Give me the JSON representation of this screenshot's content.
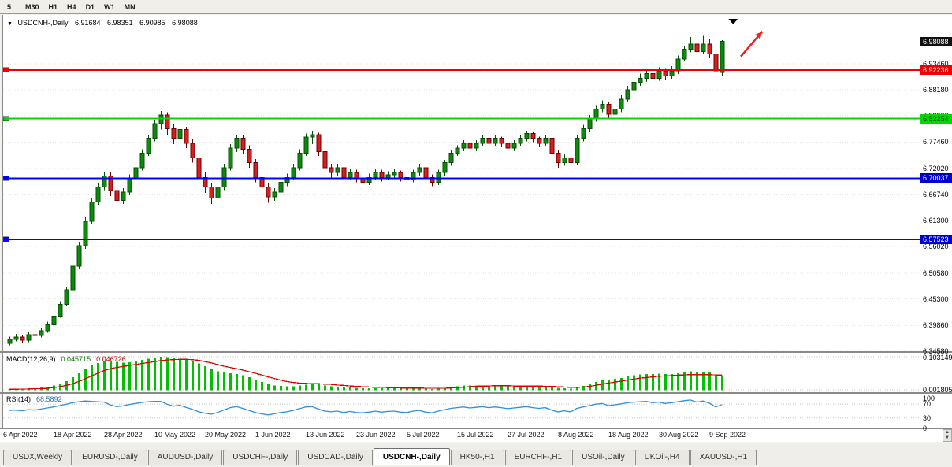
{
  "toolbar": {
    "periods": [
      "5",
      "M30",
      "H1",
      "H4",
      "D1",
      "W1",
      "MN"
    ]
  },
  "scroll": {
    "up": "▲",
    "down": "▼"
  },
  "chart": {
    "symbol_line": {
      "expander": "▼",
      "symbol": "USDCNH-,Daily",
      "open": "6.91684",
      "high": "6.98351",
      "low": "6.90985",
      "close": "6.98088"
    },
    "price_axis": {
      "ticks": [
        "6.93460",
        "6.88180",
        "6.82900",
        "6.77460",
        "6.72020",
        "6.66740",
        "6.61300",
        "6.56020",
        "6.50580",
        "6.45300",
        "6.39860",
        "6.34580"
      ],
      "badges": [
        {
          "text": "6.98088",
          "value": 6.98088,
          "bg": "#111111",
          "fg": "#ffffff"
        },
        {
          "text": "6.92236",
          "value": 6.92236,
          "bg": "#f00000",
          "fg": "#ffffff"
        },
        {
          "text": "6.82254",
          "value": 6.82254,
          "bg": "#00d800",
          "fg": "#013301"
        },
        {
          "text": "6.70037",
          "value": 6.70037,
          "bg": "#0000cc",
          "fg": "#ffffff"
        },
        {
          "text": "6.57523",
          "value": 6.57523,
          "bg": "#0000cc",
          "fg": "#ffffff"
        }
      ]
    },
    "hlines": [
      {
        "price": 6.92236,
        "color": "#f00000",
        "width": 2
      },
      {
        "price": 6.82254,
        "color": "#00d800",
        "width": 2
      },
      {
        "price": 6.70037,
        "color": "#0000ff",
        "width": 2
      },
      {
        "price": 6.57523,
        "color": "#0000ff",
        "width": 2
      }
    ],
    "annotations": [
      {
        "type": "triangle-down",
        "index": 114.8,
        "price": 7.027,
        "color": "#000000"
      },
      {
        "type": "arrow-up-right",
        "from_index": 116,
        "from_price": 6.95,
        "to_index": 119.4,
        "to_price": 7.001,
        "color": "#f22020"
      }
    ]
  },
  "chart_data": {
    "type": "candlestick",
    "symbol": "USDCNH-,Daily",
    "price_range": [
      6.3458,
      7.035
    ],
    "colors": {
      "up": "#0c8a0c",
      "up_border": "#054d05",
      "down": "#d42020",
      "down_border": "#6e0000"
    },
    "x_labels": [
      {
        "i": 0,
        "text": "6 Apr 2022"
      },
      {
        "i": 8,
        "text": "18 Apr 2022"
      },
      {
        "i": 16,
        "text": "28 Apr 2022"
      },
      {
        "i": 24,
        "text": "10 May 2022"
      },
      {
        "i": 32,
        "text": "20 May 2022"
      },
      {
        "i": 40,
        "text": "1 Jun 2022"
      },
      {
        "i": 48,
        "text": "13 Jun 2022"
      },
      {
        "i": 56,
        "text": "23 Jun 2022"
      },
      {
        "i": 64,
        "text": "5 Jul 2022"
      },
      {
        "i": 72,
        "text": "15 Jul 2022"
      },
      {
        "i": 80,
        "text": "27 Jul 2022"
      },
      {
        "i": 88,
        "text": "8 Aug 2022"
      },
      {
        "i": 96,
        "text": "18 Aug 2022"
      },
      {
        "i": 104,
        "text": "30 Aug 2022"
      },
      {
        "i": 112,
        "text": "9 Sep 2022"
      }
    ],
    "ohlc": [
      [
        6.362,
        6.376,
        6.358,
        6.37
      ],
      [
        6.37,
        6.381,
        6.366,
        6.375
      ],
      [
        6.375,
        6.379,
        6.362,
        6.368
      ],
      [
        6.368,
        6.386,
        6.364,
        6.38
      ],
      [
        6.38,
        6.385,
        6.372,
        6.378
      ],
      [
        6.378,
        6.393,
        6.374,
        6.388
      ],
      [
        6.388,
        6.406,
        6.384,
        6.4
      ],
      [
        6.4,
        6.424,
        6.396,
        6.418
      ],
      [
        6.418,
        6.448,
        6.414,
        6.442
      ],
      [
        6.442,
        6.478,
        6.438,
        6.472
      ],
      [
        6.472,
        6.528,
        6.468,
        6.52
      ],
      [
        6.52,
        6.57,
        6.514,
        6.562
      ],
      [
        6.562,
        6.62,
        6.556,
        6.612
      ],
      [
        6.612,
        6.66,
        6.606,
        6.652
      ],
      [
        6.652,
        6.69,
        6.646,
        6.682
      ],
      [
        6.682,
        6.714,
        6.676,
        6.705
      ],
      [
        6.705,
        6.712,
        6.664,
        6.675
      ],
      [
        6.675,
        6.684,
        6.64,
        6.655
      ],
      [
        6.655,
        6.68,
        6.648,
        6.672
      ],
      [
        6.672,
        6.708,
        6.666,
        6.7
      ],
      [
        6.7,
        6.73,
        6.694,
        6.722
      ],
      [
        6.722,
        6.76,
        6.716,
        6.752
      ],
      [
        6.752,
        6.79,
        6.746,
        6.782
      ],
      [
        6.782,
        6.82,
        6.776,
        6.812
      ],
      [
        6.812,
        6.838,
        6.8,
        6.83
      ],
      [
        6.83,
        6.836,
        6.79,
        6.802
      ],
      [
        6.802,
        6.812,
        6.77,
        6.782
      ],
      [
        6.782,
        6.808,
        6.776,
        6.8
      ],
      [
        6.8,
        6.806,
        6.762,
        6.772
      ],
      [
        6.772,
        6.78,
        6.732,
        6.742
      ],
      [
        6.742,
        6.75,
        6.692,
        6.702
      ],
      [
        6.702,
        6.712,
        6.67,
        6.682
      ],
      [
        6.682,
        6.69,
        6.648,
        6.66
      ],
      [
        6.66,
        6.69,
        6.654,
        6.682
      ],
      [
        6.682,
        6.73,
        6.676,
        6.722
      ],
      [
        6.722,
        6.77,
        6.716,
        6.762
      ],
      [
        6.762,
        6.79,
        6.754,
        6.782
      ],
      [
        6.782,
        6.788,
        6.75,
        6.76
      ],
      [
        6.76,
        6.768,
        6.722,
        6.732
      ],
      [
        6.732,
        6.74,
        6.692,
        6.702
      ],
      [
        6.702,
        6.71,
        6.672,
        6.682
      ],
      [
        6.682,
        6.69,
        6.65,
        6.662
      ],
      [
        6.662,
        6.68,
        6.654,
        6.672
      ],
      [
        6.672,
        6.7,
        6.664,
        6.692
      ],
      [
        6.692,
        6.71,
        6.684,
        6.702
      ],
      [
        6.702,
        6.73,
        6.696,
        6.722
      ],
      [
        6.722,
        6.76,
        6.716,
        6.752
      ],
      [
        6.752,
        6.792,
        6.746,
        6.785
      ],
      [
        6.785,
        6.798,
        6.77,
        6.79
      ],
      [
        6.79,
        6.794,
        6.746,
        6.755
      ],
      [
        6.755,
        6.762,
        6.712,
        6.722
      ],
      [
        6.722,
        6.73,
        6.7,
        6.712
      ],
      [
        6.712,
        6.73,
        6.704,
        6.722
      ],
      [
        6.722,
        6.728,
        6.694,
        6.702
      ],
      [
        6.702,
        6.72,
        6.696,
        6.712
      ],
      [
        6.712,
        6.718,
        6.692,
        6.7
      ],
      [
        6.7,
        6.708,
        6.684,
        6.692
      ],
      [
        6.692,
        6.71,
        6.686,
        6.702
      ],
      [
        6.702,
        6.72,
        6.696,
        6.712
      ],
      [
        6.712,
        6.718,
        6.694,
        6.702
      ],
      [
        6.702,
        6.715,
        6.696,
        6.707
      ],
      [
        6.707,
        6.72,
        6.7,
        6.712
      ],
      [
        6.712,
        6.716,
        6.694,
        6.702
      ],
      [
        6.702,
        6.71,
        6.688,
        6.697
      ],
      [
        6.697,
        6.718,
        6.692,
        6.712
      ],
      [
        6.712,
        6.73,
        6.706,
        6.722
      ],
      [
        6.722,
        6.726,
        6.694,
        6.702
      ],
      [
        6.702,
        6.708,
        6.684,
        6.692
      ],
      [
        6.692,
        6.718,
        6.686,
        6.712
      ],
      [
        6.712,
        6.738,
        6.706,
        6.732
      ],
      [
        6.732,
        6.758,
        6.726,
        6.752
      ],
      [
        6.752,
        6.768,
        6.746,
        6.762
      ],
      [
        6.762,
        6.778,
        6.756,
        6.772
      ],
      [
        6.772,
        6.776,
        6.754,
        6.762
      ],
      [
        6.762,
        6.778,
        6.756,
        6.772
      ],
      [
        6.772,
        6.788,
        6.766,
        6.782
      ],
      [
        6.782,
        6.786,
        6.764,
        6.772
      ],
      [
        6.772,
        6.788,
        6.766,
        6.782
      ],
      [
        6.782,
        6.786,
        6.764,
        6.772
      ],
      [
        6.772,
        6.776,
        6.754,
        6.762
      ],
      [
        6.762,
        6.778,
        6.756,
        6.772
      ],
      [
        6.772,
        6.788,
        6.766,
        6.782
      ],
      [
        6.782,
        6.798,
        6.776,
        6.792
      ],
      [
        6.792,
        6.796,
        6.774,
        6.782
      ],
      [
        6.782,
        6.786,
        6.764,
        6.772
      ],
      [
        6.772,
        6.788,
        6.766,
        6.782
      ],
      [
        6.782,
        6.786,
        6.744,
        6.752
      ],
      [
        6.752,
        6.758,
        6.722,
        6.732
      ],
      [
        6.732,
        6.75,
        6.726,
        6.742
      ],
      [
        6.742,
        6.746,
        6.722,
        6.732
      ],
      [
        6.732,
        6.788,
        6.728,
        6.782
      ],
      [
        6.782,
        6.81,
        6.776,
        6.802
      ],
      [
        6.802,
        6.83,
        6.796,
        6.822
      ],
      [
        6.822,
        6.85,
        6.816,
        6.842
      ],
      [
        6.842,
        6.86,
        6.836,
        6.852
      ],
      [
        6.852,
        6.856,
        6.824,
        6.832
      ],
      [
        6.832,
        6.85,
        6.826,
        6.842
      ],
      [
        6.842,
        6.87,
        6.836,
        6.862
      ],
      [
        6.862,
        6.89,
        6.856,
        6.882
      ],
      [
        6.882,
        6.905,
        6.876,
        6.897
      ],
      [
        6.897,
        6.915,
        6.89,
        6.905
      ],
      [
        6.905,
        6.925,
        6.898,
        6.915
      ],
      [
        6.915,
        6.92,
        6.896,
        6.905
      ],
      [
        6.905,
        6.928,
        6.9,
        6.92
      ],
      [
        6.92,
        6.926,
        6.902,
        6.91
      ],
      [
        6.91,
        6.93,
        6.904,
        6.92
      ],
      [
        6.92,
        6.952,
        6.914,
        6.945
      ],
      [
        6.945,
        6.972,
        6.94,
        6.965
      ],
      [
        6.965,
        6.99,
        6.958,
        6.975
      ],
      [
        6.975,
        6.982,
        6.95,
        6.96
      ],
      [
        6.96,
        6.992,
        6.954,
        6.975
      ],
      [
        6.975,
        6.985,
        6.946,
        6.955
      ],
      [
        6.955,
        6.962,
        6.908,
        6.92
      ],
      [
        6.91684,
        6.98351,
        6.90985,
        6.98088
      ]
    ],
    "macd": {
      "name": "MACD(12,26,9)",
      "value1": "0.045715",
      "value2": "0.046726",
      "axis_labels": [
        "0.103149",
        "0.001805"
      ],
      "axis_values": [
        0.103149,
        0.001805
      ],
      "hist_color": "#00c000",
      "signal_color": "#e00000",
      "hist": [
        0.004,
        0.005,
        0.004,
        0.006,
        0.006,
        0.008,
        0.01,
        0.014,
        0.02,
        0.028,
        0.04,
        0.052,
        0.065,
        0.076,
        0.084,
        0.09,
        0.09,
        0.087,
        0.085,
        0.086,
        0.089,
        0.093,
        0.097,
        0.1,
        0.103,
        0.102,
        0.099,
        0.097,
        0.094,
        0.089,
        0.082,
        0.074,
        0.065,
        0.058,
        0.054,
        0.052,
        0.05,
        0.046,
        0.04,
        0.033,
        0.026,
        0.019,
        0.015,
        0.013,
        0.012,
        0.012,
        0.014,
        0.017,
        0.019,
        0.018,
        0.015,
        0.012,
        0.011,
        0.009,
        0.008,
        0.007,
        0.006,
        0.006,
        0.006,
        0.006,
        0.006,
        0.006,
        0.005,
        0.005,
        0.005,
        0.006,
        0.005,
        0.004,
        0.005,
        0.007,
        0.01,
        0.012,
        0.014,
        0.014,
        0.014,
        0.015,
        0.015,
        0.015,
        0.014,
        0.013,
        0.013,
        0.013,
        0.014,
        0.013,
        0.012,
        0.012,
        0.01,
        0.007,
        0.006,
        0.005,
        0.008,
        0.013,
        0.019,
        0.026,
        0.031,
        0.033,
        0.035,
        0.038,
        0.042,
        0.046,
        0.048,
        0.05,
        0.05,
        0.051,
        0.05,
        0.05,
        0.052,
        0.055,
        0.058,
        0.057,
        0.057,
        0.054,
        0.048,
        0.0457
      ],
      "signal": [
        0.003,
        0.003,
        0.004,
        0.004,
        0.005,
        0.005,
        0.006,
        0.008,
        0.011,
        0.015,
        0.02,
        0.027,
        0.035,
        0.044,
        0.052,
        0.06,
        0.066,
        0.07,
        0.073,
        0.076,
        0.079,
        0.082,
        0.085,
        0.088,
        0.091,
        0.093,
        0.094,
        0.095,
        0.095,
        0.094,
        0.092,
        0.088,
        0.084,
        0.079,
        0.074,
        0.07,
        0.066,
        0.062,
        0.057,
        0.052,
        0.047,
        0.041,
        0.036,
        0.031,
        0.027,
        0.024,
        0.022,
        0.021,
        0.02,
        0.02,
        0.019,
        0.018,
        0.016,
        0.015,
        0.013,
        0.012,
        0.011,
        0.01,
        0.009,
        0.009,
        0.008,
        0.008,
        0.007,
        0.007,
        0.007,
        0.007,
        0.006,
        0.006,
        0.006,
        0.006,
        0.007,
        0.008,
        0.009,
        0.011,
        0.012,
        0.013,
        0.013,
        0.014,
        0.014,
        0.014,
        0.013,
        0.013,
        0.013,
        0.013,
        0.013,
        0.012,
        0.012,
        0.011,
        0.01,
        0.009,
        0.009,
        0.01,
        0.012,
        0.015,
        0.019,
        0.022,
        0.025,
        0.028,
        0.031,
        0.034,
        0.037,
        0.039,
        0.041,
        0.043,
        0.044,
        0.045,
        0.046,
        0.047,
        0.048,
        0.048,
        0.048,
        0.048,
        0.047,
        0.0467
      ]
    },
    "rsi": {
      "name": "RSI(14)",
      "value": "68.5892",
      "color": "#2f8fde",
      "axis_labels": [
        "100",
        "70",
        "30",
        "0"
      ],
      "axis_values": [
        100,
        70,
        30,
        0
      ],
      "levels": [
        70,
        30
      ],
      "series": [
        52,
        53,
        51,
        54,
        53,
        56,
        59,
        62,
        66,
        70,
        74,
        77,
        79,
        78,
        77,
        76,
        68,
        63,
        65,
        69,
        72,
        75,
        77,
        78,
        78,
        70,
        64,
        67,
        61,
        55,
        48,
        44,
        41,
        46,
        53,
        60,
        63,
        58,
        52,
        46,
        42,
        39,
        42,
        46,
        48,
        52,
        57,
        62,
        63,
        56,
        50,
        48,
        50,
        46,
        49,
        46,
        45,
        47,
        50,
        47,
        49,
        50,
        47,
        46,
        50,
        52,
        47,
        45,
        50,
        54,
        58,
        60,
        62,
        59,
        61,
        63,
        60,
        62,
        60,
        57,
        59,
        61,
        63,
        60,
        58,
        60,
        53,
        48,
        51,
        48,
        58,
        62,
        66,
        70,
        72,
        66,
        68,
        71,
        74,
        76,
        77,
        78,
        74,
        76,
        72,
        74,
        77,
        80,
        82,
        76,
        79,
        73,
        62,
        68.6
      ]
    }
  },
  "tabs": [
    {
      "label": "USDX,Weekly",
      "active": false
    },
    {
      "label": "EURUSD-,Daily",
      "active": false
    },
    {
      "label": "AUDUSD-,Daily",
      "active": false
    },
    {
      "label": "USDCHF-,Daily",
      "active": false
    },
    {
      "label": "USDCAD-,Daily",
      "active": false
    },
    {
      "label": "USDCNH-,Daily",
      "active": true
    },
    {
      "label": "HK50-,H1",
      "active": false
    },
    {
      "label": "EURCHF-,H1",
      "active": false
    },
    {
      "label": "USOil-,Daily",
      "active": false
    },
    {
      "label": "UKOil-,H4",
      "active": false
    },
    {
      "label": "XAUUSD-,H1",
      "active": false
    }
  ]
}
